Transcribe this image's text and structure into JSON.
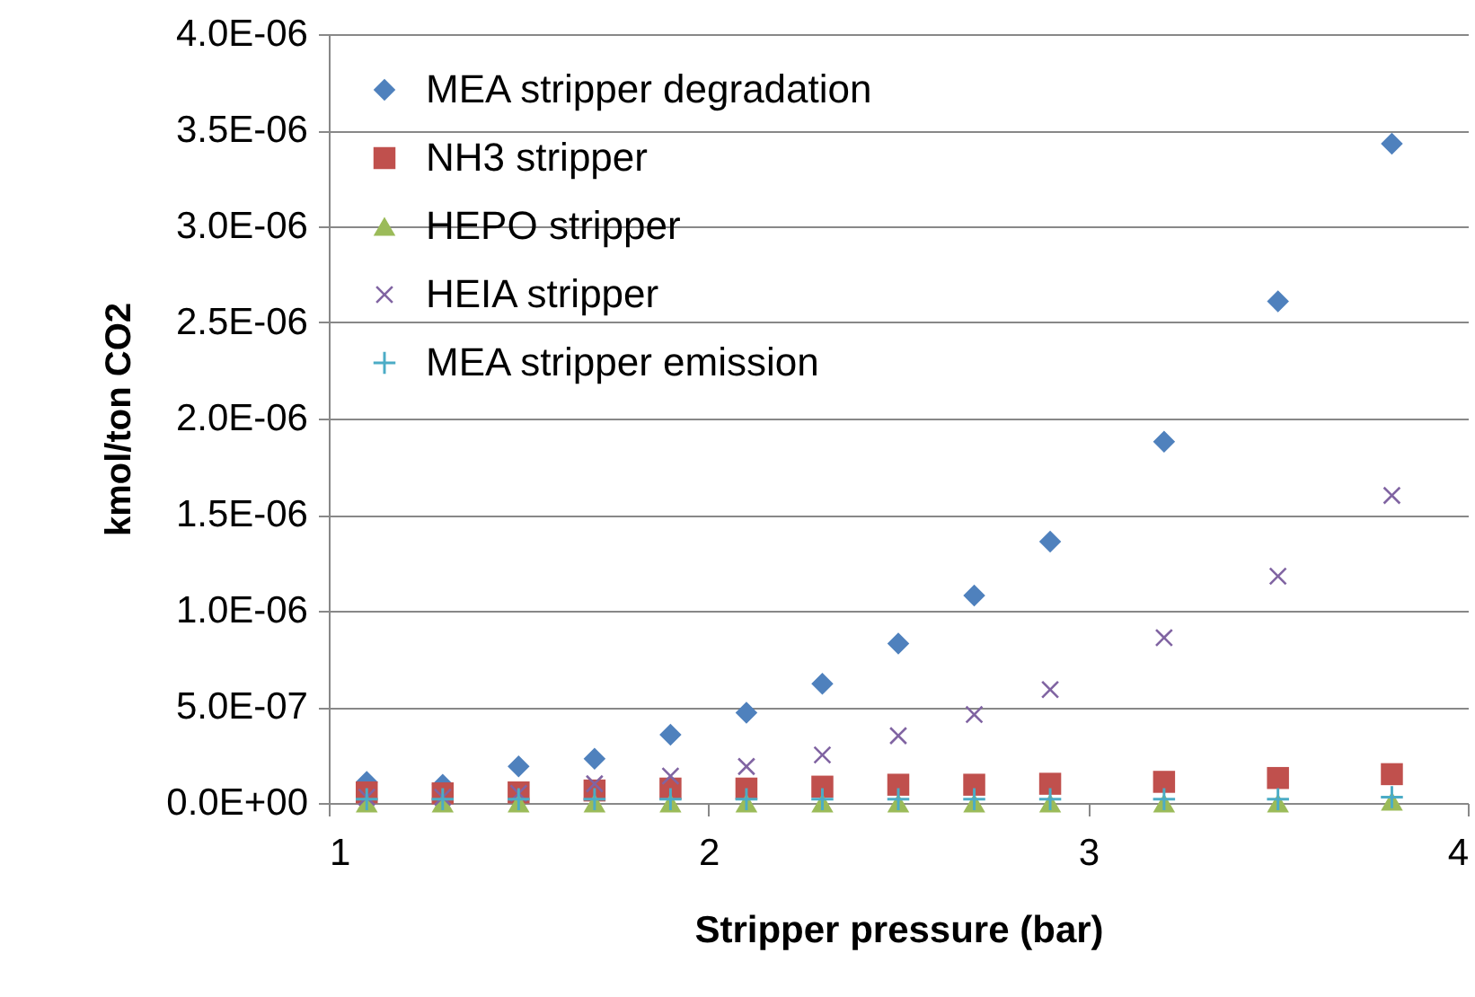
{
  "chart_data": {
    "type": "scatter",
    "xlabel": "Stripper pressure (bar)",
    "ylabel": "kmol/ton CO2",
    "x": [
      1.1,
      1.3,
      1.5,
      1.7,
      1.9,
      2.1,
      2.3,
      2.5,
      2.7,
      2.9,
      3.2,
      3.5,
      3.8
    ],
    "series": [
      {
        "name": "MEA stripper degradation",
        "color": "#4f81bd",
        "marker": "diamond",
        "values": [
          1.1e-07,
          9.5e-08,
          1.9e-07,
          2.3e-07,
          3.55e-07,
          4.7e-07,
          6.2e-07,
          8.3e-07,
          1.08e-06,
          1.36e-06,
          1.88e-06,
          2.61e-06,
          3.43e-06
        ]
      },
      {
        "name": "NH3 stripper",
        "color": "#c0504d",
        "marker": "square",
        "values": [
          5.5e-08,
          5e-08,
          5.5e-08,
          6.5e-08,
          7.5e-08,
          7.5e-08,
          8.5e-08,
          9.5e-08,
          9.5e-08,
          1e-07,
          1.1e-07,
          1.3e-07,
          1.5e-07
        ]
      },
      {
        "name": "HEPO stripper",
        "color": "#9bbb59",
        "marker": "triangle",
        "values": [
          0,
          0,
          0,
          0,
          0,
          0,
          0,
          0,
          0,
          0,
          0,
          0,
          1e-08
        ]
      },
      {
        "name": "HEIA stripper",
        "color": "#8064a2",
        "marker": "x",
        "values": [
          3e-08,
          3e-08,
          5e-08,
          1e-07,
          1.4e-07,
          1.9e-07,
          2.5e-07,
          3.5e-07,
          4.6e-07,
          5.9e-07,
          8.6e-07,
          1.18e-06,
          1.6e-06
        ]
      },
      {
        "name": "MEA stripper emission",
        "color": "#4bacc6",
        "marker": "cross",
        "values": [
          2e-08,
          2e-08,
          2e-08,
          2e-08,
          2e-08,
          2e-08,
          2e-08,
          2e-08,
          2e-08,
          2e-08,
          2e-08,
          2e-08,
          3e-08
        ]
      }
    ],
    "xlim": [
      1,
      4
    ],
    "xticks": [
      1,
      2,
      3,
      4
    ],
    "ylim": [
      0,
      4e-06
    ],
    "yticks": [
      {
        "value": 0,
        "label": "0.0E+00"
      },
      {
        "value": 5e-07,
        "label": "5.0E-07"
      },
      {
        "value": 1e-06,
        "label": "1.0E-06"
      },
      {
        "value": 1.5e-06,
        "label": "1.5E-06"
      },
      {
        "value": 2e-06,
        "label": "2.0E-06"
      },
      {
        "value": 2.5e-06,
        "label": "2.5E-06"
      },
      {
        "value": 3e-06,
        "label": "3.0E-06"
      },
      {
        "value": 3.5e-06,
        "label": "3.5E-06"
      },
      {
        "value": 4e-06,
        "label": "4.0E-06"
      }
    ],
    "grid": "y",
    "legend": "top left"
  }
}
